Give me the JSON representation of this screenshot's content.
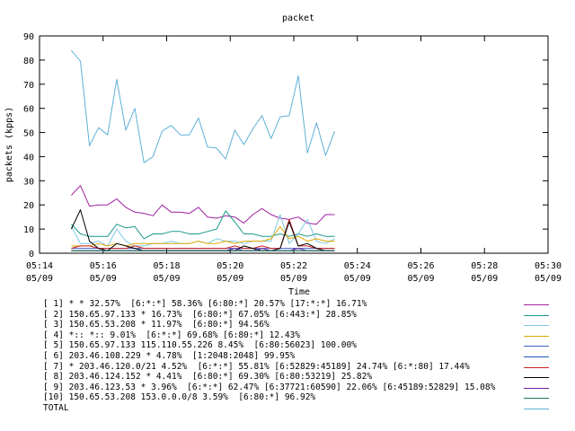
{
  "chart_data": {
    "type": "line",
    "title": "packet",
    "xlabel": "Time",
    "ylabel": "packets (kpps)",
    "ylim": [
      0,
      90
    ],
    "yticks": [
      0,
      10,
      20,
      30,
      40,
      50,
      60,
      70,
      80,
      90
    ],
    "xlim_min": [
      5254,
      5270
    ],
    "xticks": [
      {
        "min": 5254,
        "top": "05:14",
        "bottom": "05/09"
      },
      {
        "min": 5256,
        "top": "05:16",
        "bottom": "05/09"
      },
      {
        "min": 5258,
        "top": "05:18",
        "bottom": "05/09"
      },
      {
        "min": 5260,
        "top": "05:20",
        "bottom": "05/09"
      },
      {
        "min": 5262,
        "top": "05:22",
        "bottom": "05/09"
      },
      {
        "min": 5264,
        "top": "05:24",
        "bottom": "05/09"
      },
      {
        "min": 5266,
        "top": "05:26",
        "bottom": "05/09"
      },
      {
        "min": 5268,
        "top": "05:28",
        "bottom": "05/09"
      },
      {
        "min": 5270,
        "top": "05:30",
        "bottom": "05/09"
      }
    ],
    "x_start_min": 5255.0,
    "x_step_min": 0.2857,
    "grid": false,
    "legend_position": "bottom",
    "series": [
      {
        "name": "[ 1] * * 32.57%  [6:*:*] 58.36% [6:80:*] 20.57% [17:*:*] 16.71%",
        "color": "#a020a0",
        "values": [
          24,
          28,
          19.5,
          20,
          20,
          22.5,
          19,
          17,
          16.5,
          15.5,
          20,
          17,
          17,
          16.5,
          19,
          15,
          14.5,
          15.5,
          15,
          12.5,
          16,
          18.5,
          16,
          14.5,
          14,
          15,
          12.5,
          12,
          16,
          16
        ]
      },
      {
        "name": "[ 2] 150.65.97.133 * 16.73%  [6:80:*] 67.05% [6:443:*] 28.85%",
        "color": "#1a9a8a",
        "values": [
          12,
          8,
          7,
          7,
          7,
          12,
          10.5,
          11,
          6,
          8,
          8,
          9,
          9,
          8,
          8,
          9,
          10,
          17.5,
          13,
          8,
          8,
          7,
          7,
          8,
          7,
          8,
          7,
          8,
          7,
          7
        ]
      },
      {
        "name": "[ 3] 150.65.53.208 * 11.97%  [6:80:*] 94.56%",
        "color": "#7ec8e3",
        "values": [
          11,
          4,
          4,
          5,
          3,
          10,
          5,
          3,
          3,
          4,
          4,
          5,
          4,
          4,
          5,
          4,
          6,
          5,
          5,
          4,
          5,
          5,
          5,
          16,
          4,
          8,
          14,
          5,
          4,
          6
        ]
      },
      {
        "name": "[ 4] *:: *:: 9.01%  [6:*:*] 69.68% [6:80:*] 12.43%",
        "color": "#e0a800",
        "values": [
          3,
          3,
          3,
          4,
          3,
          4,
          3,
          4,
          4,
          4,
          4,
          4,
          4,
          4,
          5,
          4,
          4,
          5,
          4,
          5,
          5,
          5,
          6,
          11,
          6,
          7,
          5,
          6,
          5,
          5
        ]
      },
      {
        "name": "[ 5] 150.65.97.133 115.110.55.226 8.45%  [6:80:56023] 100.00%",
        "color": "#4060c8",
        "values": [
          2,
          2,
          2,
          2,
          2,
          2,
          2,
          2,
          2,
          2,
          2,
          2,
          2,
          2,
          2,
          2,
          2,
          2,
          2,
          2,
          2,
          2,
          2,
          2,
          2,
          2,
          2,
          2,
          2,
          2
        ]
      },
      {
        "name": "[ 6] 203.46.108.229 * 4.78%  [1:2048:2048] 99.95%",
        "color": "#1f5ab4",
        "values": [
          1,
          1,
          1,
          1,
          1,
          1,
          1,
          1,
          1,
          1,
          1,
          1,
          1,
          1,
          1,
          1,
          1,
          1,
          1,
          1,
          1,
          1,
          1,
          1,
          1,
          1,
          1,
          1,
          1,
          1
        ]
      },
      {
        "name": "[ 7] * 203.46.120.0/21 4.52%  [6:*:*] 55.81% [6:52829:45189] 24.74% [6:*:80] 17.44%",
        "color": "#d02020",
        "values": [
          2,
          3,
          3,
          2,
          2,
          2,
          2,
          3,
          2,
          2,
          2,
          2,
          2,
          2,
          2,
          2,
          2,
          2,
          3,
          2,
          2,
          3,
          2,
          2,
          14,
          3,
          3,
          2,
          2,
          2
        ]
      },
      {
        "name": "[ 8] 203.46.124.152 * 4.41%  [6:80:*] 69.30% [6:80:53219] 25.82%",
        "color": "#000000",
        "values": [
          10,
          18,
          5,
          2,
          1,
          4,
          3,
          2,
          1,
          1,
          1,
          1,
          1,
          1,
          1,
          1,
          1,
          1,
          1,
          3,
          2,
          1,
          1,
          2,
          13,
          3,
          4,
          2,
          1,
          1
        ]
      },
      {
        "name": "[ 9] 203.46.123.53 * 3.96%  [6:*:*] 62.47% [6:37721:60590] 22.06% [6:45189:52829] 15.08%",
        "color": "#7020a0",
        "values": [
          1,
          1,
          1,
          1,
          1,
          1,
          1,
          1,
          1,
          1,
          1,
          1,
          1,
          1,
          1,
          1,
          1,
          1,
          2,
          1,
          1,
          2,
          1,
          1,
          1,
          2,
          1,
          1,
          1,
          1
        ]
      },
      {
        "name": "[10] 150.65.53.208 153.0.0.0/8 3.59%  [6:80:*] 96.92%",
        "color": "#1d7a52",
        "values": [
          1,
          1,
          1,
          1,
          1,
          1,
          1,
          1,
          1,
          1,
          1,
          1,
          1,
          1,
          1,
          1,
          1,
          1,
          1,
          1,
          1,
          1,
          1,
          1,
          1,
          1,
          1,
          1,
          1,
          1
        ]
      },
      {
        "name": "TOTAL",
        "color": "#5fb0d6",
        "values": [
          84,
          79.5,
          44.5,
          52,
          49,
          72,
          51,
          60,
          37.5,
          40,
          50.5,
          53,
          49,
          49,
          56,
          44,
          43.5,
          39,
          51,
          45,
          51.5,
          57,
          47.5,
          56.5,
          57,
          73.5,
          41.5,
          54,
          40.5,
          50.5
        ]
      }
    ]
  }
}
